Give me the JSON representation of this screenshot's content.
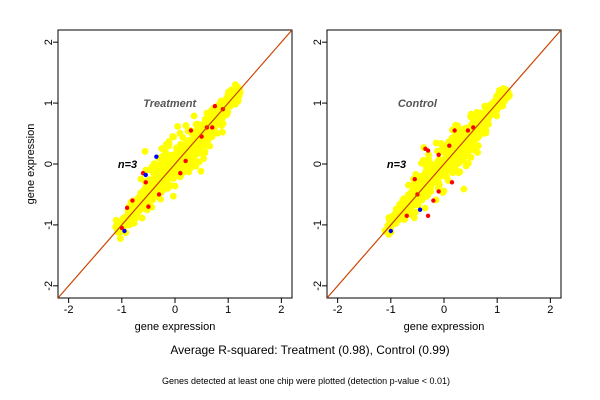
{
  "summary": "Average R-squared: Treatment (0.98), Control (0.99)",
  "footnote": "Genes detected at least one chip were plotted (detection p-value < 0.01)",
  "colors": {
    "background": "#ffffff",
    "diagonal": "#cc4400",
    "main_cloud": "#ffff00",
    "points_red": "#ff0000",
    "points_blue": "#0000ff",
    "annotation": "#555555"
  },
  "chart_data": [
    {
      "type": "scatter",
      "title": "",
      "annotation": "Treatment",
      "count_label": "n=3",
      "xlabel": "gene expression",
      "ylabel": "gene expression",
      "xlim": [
        -2.2,
        2.2
      ],
      "ylim": [
        -2.2,
        2.2
      ],
      "xticks": [
        "-2",
        "-1",
        "0",
        "1",
        "2"
      ],
      "yticks": [
        "-2",
        "-1",
        "0",
        "1",
        "2"
      ],
      "reference_line": "y = x",
      "cloud_range": [
        -1.1,
        1.2
      ],
      "series": [
        {
          "color": "#ff0000",
          "points": [
            [
              -0.6,
              -0.15
            ],
            [
              -0.55,
              -0.3
            ],
            [
              -0.9,
              -0.72
            ],
            [
              -1.0,
              -1.05
            ],
            [
              -0.5,
              -0.7
            ],
            [
              0.2,
              0.05
            ],
            [
              0.5,
              0.45
            ],
            [
              0.6,
              0.6
            ],
            [
              0.7,
              0.6
            ],
            [
              0.9,
              0.9
            ],
            [
              -0.3,
              -0.5
            ],
            [
              0.3,
              0.55
            ],
            [
              -0.8,
              -0.6
            ],
            [
              0.1,
              -0.15
            ],
            [
              0.75,
              0.95
            ]
          ]
        },
        {
          "color": "#0000ff",
          "points": [
            [
              -0.35,
              0.12
            ],
            [
              -0.55,
              -0.18
            ],
            [
              -0.95,
              -1.1
            ]
          ]
        }
      ]
    },
    {
      "type": "scatter",
      "title": "",
      "annotation": "Control",
      "count_label": "n=3",
      "xlabel": "gene expression",
      "ylabel": "",
      "xlim": [
        -2.2,
        2.2
      ],
      "ylim": [
        -2.2,
        2.2
      ],
      "xticks": [
        "-2",
        "-1",
        "0",
        "1",
        "2"
      ],
      "yticks": [
        "-2",
        "-1",
        "0",
        "1",
        "2"
      ],
      "reference_line": "y = x",
      "cloud_range": [
        -1.1,
        1.2
      ],
      "series": [
        {
          "color": "#ff0000",
          "points": [
            [
              -0.35,
              0.25
            ],
            [
              -0.3,
              0.22
            ],
            [
              -0.1,
              0.15
            ],
            [
              0.1,
              0.3
            ],
            [
              0.45,
              0.55
            ],
            [
              0.55,
              0.6
            ],
            [
              -0.55,
              -0.25
            ],
            [
              -0.1,
              -0.45
            ],
            [
              -0.2,
              -0.6
            ],
            [
              0.15,
              -0.3
            ],
            [
              -0.7,
              -0.85
            ],
            [
              -0.3,
              -0.85
            ],
            [
              0.2,
              0.55
            ],
            [
              -0.5,
              -0.5
            ]
          ]
        },
        {
          "color": "#0000ff",
          "points": [
            [
              -0.45,
              -0.75
            ],
            [
              -1.0,
              -1.1
            ]
          ]
        }
      ]
    }
  ]
}
